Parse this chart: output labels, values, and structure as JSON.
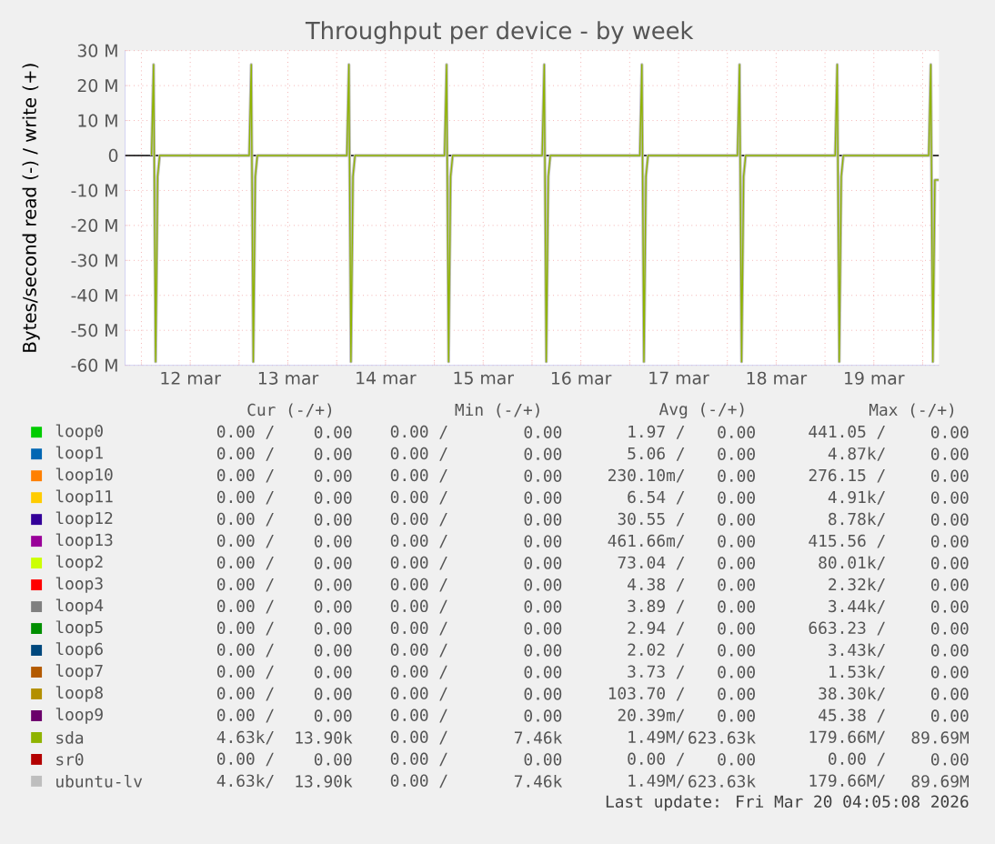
{
  "chart_data": {
    "type": "line",
    "title": "Throughput per device - by week",
    "ylabel": "Bytes/second read (-) / write (+)",
    "xlim": [
      "2026-03-11T20:00",
      "2026-03-20T04:00"
    ],
    "xticks": [
      {
        "value": "2026-03-12T00:00",
        "label": null
      },
      {
        "value": "2026-03-12T12:00",
        "label": "12 mar"
      },
      {
        "value": "2026-03-13T00:00",
        "label": null
      },
      {
        "value": "2026-03-13T12:00",
        "label": "13 mar"
      },
      {
        "value": "2026-03-14T00:00",
        "label": null
      },
      {
        "value": "2026-03-14T12:00",
        "label": "14 mar"
      },
      {
        "value": "2026-03-15T00:00",
        "label": null
      },
      {
        "value": "2026-03-15T12:00",
        "label": "15 mar"
      },
      {
        "value": "2026-03-16T00:00",
        "label": null
      },
      {
        "value": "2026-03-16T12:00",
        "label": "16 mar"
      },
      {
        "value": "2026-03-17T00:00",
        "label": null
      },
      {
        "value": "2026-03-17T12:00",
        "label": "17 mar"
      },
      {
        "value": "2026-03-18T00:00",
        "label": null
      },
      {
        "value": "2026-03-18T12:00",
        "label": "18 mar"
      },
      {
        "value": "2026-03-19T00:00",
        "label": null
      },
      {
        "value": "2026-03-19T12:00",
        "label": "19 mar"
      },
      {
        "value": "2026-03-20T00:00",
        "label": null
      }
    ],
    "ylim": [
      -60000000,
      30000000
    ],
    "yticks": [
      {
        "value": 30000000,
        "label": "30 M"
      },
      {
        "value": 20000000,
        "label": "20 M"
      },
      {
        "value": 10000000,
        "label": "10 M"
      },
      0,
      {
        "value": -10000000,
        "label": "-10 M"
      },
      {
        "value": -20000000,
        "label": "-20 M"
      },
      {
        "value": -30000000,
        "label": "-30 M"
      },
      {
        "value": -40000000,
        "label": "-40 M"
      },
      {
        "value": -50000000,
        "label": "-50 M"
      },
      {
        "value": -60000000,
        "label": "-60 M"
      }
    ],
    "grid": true,
    "legend": "bottom",
    "x": [
      "2026-03-12T02:30",
      "2026-03-12T03:00",
      "2026-03-12T03:30",
      "2026-03-12T04:00",
      "2026-03-12T04:30",
      "2026-03-13T02:30",
      "2026-03-13T03:00",
      "2026-03-13T03:30",
      "2026-03-13T04:00",
      "2026-03-13T04:30",
      "2026-03-14T02:30",
      "2026-03-14T03:00",
      "2026-03-14T03:30",
      "2026-03-14T04:00",
      "2026-03-14T04:30",
      "2026-03-15T02:30",
      "2026-03-15T03:00",
      "2026-03-15T03:30",
      "2026-03-15T04:00",
      "2026-03-15T04:30",
      "2026-03-16T02:30",
      "2026-03-16T03:00",
      "2026-03-16T03:30",
      "2026-03-16T04:00",
      "2026-03-16T04:30",
      "2026-03-17T02:30",
      "2026-03-17T03:00",
      "2026-03-17T03:30",
      "2026-03-17T04:00",
      "2026-03-17T04:30",
      "2026-03-18T02:30",
      "2026-03-18T03:00",
      "2026-03-18T03:30",
      "2026-03-18T04:00",
      "2026-03-18T04:30",
      "2026-03-19T02:30",
      "2026-03-19T03:00",
      "2026-03-19T03:30",
      "2026-03-19T04:00",
      "2026-03-19T04:30",
      "2026-03-20T01:30",
      "2026-03-20T02:00",
      "2026-03-20T02:30",
      "2026-03-20T03:00",
      "2026-03-20T04:00"
    ],
    "series": [
      {
        "name": "loop0",
        "color": "#00cc00",
        "values": [
          null,
          null,
          null,
          null,
          null,
          null,
          null,
          null,
          null,
          null,
          null,
          null,
          null,
          null,
          null,
          null,
          null,
          null,
          null,
          null,
          null,
          null,
          null,
          null,
          null,
          null,
          null,
          null,
          null,
          null,
          null,
          null,
          null,
          null,
          null,
          null,
          null,
          null,
          null,
          null,
          null,
          null,
          null,
          null,
          null
        ]
      },
      {
        "name": "loop1",
        "color": "#0066b3",
        "values": [
          null,
          null,
          null,
          null,
          null,
          null,
          null,
          null,
          null,
          null,
          null,
          null,
          null,
          null,
          null,
          null,
          null,
          null,
          null,
          null,
          null,
          null,
          null,
          null,
          null,
          null,
          null,
          null,
          null,
          null,
          null,
          null,
          null,
          null,
          null,
          null,
          null,
          null,
          null,
          null,
          null,
          null,
          null,
          null,
          null
        ]
      },
      {
        "name": "loop10",
        "color": "#ff8000",
        "values": [
          null,
          null,
          null,
          null,
          null,
          null,
          null,
          null,
          null,
          null,
          null,
          null,
          null,
          null,
          null,
          null,
          null,
          null,
          null,
          null,
          null,
          null,
          null,
          null,
          null,
          null,
          null,
          null,
          null,
          null,
          null,
          null,
          null,
          null,
          null,
          null,
          null,
          null,
          null,
          null,
          null,
          null,
          null,
          null,
          null
        ]
      },
      {
        "name": "loop11",
        "color": "#ffcc00",
        "values": [
          null,
          null,
          null,
          null,
          null,
          null,
          null,
          null,
          null,
          null,
          null,
          null,
          null,
          null,
          null,
          null,
          null,
          null,
          null,
          null,
          null,
          null,
          null,
          null,
          null,
          null,
          null,
          null,
          null,
          null,
          null,
          null,
          null,
          null,
          null,
          null,
          null,
          null,
          null,
          null,
          null,
          null,
          null,
          null,
          null
        ]
      },
      {
        "name": "loop12",
        "color": "#330099",
        "values": [
          null,
          null,
          null,
          null,
          null,
          null,
          null,
          null,
          null,
          null,
          null,
          null,
          null,
          null,
          null,
          null,
          null,
          null,
          null,
          null,
          null,
          null,
          null,
          null,
          null,
          null,
          null,
          null,
          null,
          null,
          null,
          null,
          null,
          null,
          null,
          null,
          null,
          null,
          null,
          null,
          null,
          null,
          null,
          null,
          null
        ]
      },
      {
        "name": "loop13",
        "color": "#990099",
        "values": [
          null,
          null,
          null,
          null,
          null,
          null,
          null,
          null,
          null,
          null,
          null,
          null,
          null,
          null,
          null,
          null,
          null,
          null,
          null,
          null,
          null,
          null,
          null,
          null,
          null,
          null,
          null,
          null,
          null,
          null,
          null,
          null,
          null,
          null,
          null,
          null,
          null,
          null,
          null,
          null,
          null,
          null,
          null,
          null,
          null
        ]
      },
      {
        "name": "loop2",
        "color": "#ccff00",
        "values": [
          null,
          null,
          null,
          null,
          null,
          null,
          null,
          null,
          null,
          null,
          null,
          null,
          null,
          null,
          null,
          null,
          null,
          null,
          null,
          null,
          null,
          null,
          null,
          null,
          null,
          null,
          null,
          null,
          null,
          null,
          null,
          null,
          null,
          null,
          null,
          null,
          null,
          null,
          null,
          null,
          null,
          null,
          null,
          null,
          null
        ]
      },
      {
        "name": "loop3",
        "color": "#ff0000",
        "values": [
          null,
          null,
          null,
          null,
          null,
          null,
          null,
          null,
          null,
          null,
          null,
          null,
          null,
          null,
          null,
          null,
          null,
          null,
          null,
          null,
          null,
          null,
          null,
          null,
          null,
          null,
          null,
          null,
          null,
          null,
          null,
          null,
          null,
          null,
          null,
          null,
          null,
          null,
          null,
          null,
          null,
          null,
          null,
          null,
          null
        ]
      },
      {
        "name": "loop4",
        "color": "#808080",
        "values": [
          null,
          null,
          null,
          null,
          null,
          null,
          null,
          null,
          null,
          null,
          null,
          null,
          null,
          null,
          null,
          null,
          null,
          null,
          null,
          null,
          null,
          null,
          null,
          null,
          null,
          null,
          null,
          null,
          null,
          null,
          null,
          null,
          null,
          null,
          null,
          null,
          null,
          null,
          null,
          null,
          null,
          null,
          null,
          null,
          null
        ]
      },
      {
        "name": "loop5",
        "color": "#008f00",
        "values": [
          null,
          null,
          null,
          null,
          null,
          null,
          null,
          null,
          null,
          null,
          null,
          null,
          null,
          null,
          null,
          null,
          null,
          null,
          null,
          null,
          null,
          null,
          null,
          null,
          null,
          null,
          null,
          null,
          null,
          null,
          null,
          null,
          null,
          null,
          null,
          null,
          null,
          null,
          null,
          null,
          null,
          null,
          null,
          null,
          null
        ]
      },
      {
        "name": "loop6",
        "color": "#00487d",
        "values": [
          null,
          null,
          null,
          null,
          null,
          null,
          null,
          null,
          null,
          null,
          null,
          null,
          null,
          null,
          null,
          null,
          null,
          null,
          null,
          null,
          null,
          null,
          null,
          null,
          null,
          null,
          null,
          null,
          null,
          null,
          null,
          null,
          null,
          null,
          null,
          null,
          null,
          null,
          null,
          null,
          null,
          null,
          null,
          null,
          null
        ]
      },
      {
        "name": "loop7",
        "color": "#b35a00",
        "values": [
          null,
          null,
          null,
          null,
          null,
          null,
          null,
          null,
          null,
          null,
          null,
          null,
          null,
          null,
          null,
          null,
          null,
          null,
          null,
          null,
          null,
          null,
          null,
          null,
          null,
          null,
          null,
          null,
          null,
          null,
          null,
          null,
          null,
          null,
          null,
          null,
          null,
          null,
          null,
          null,
          null,
          null,
          null,
          null,
          null
        ]
      },
      {
        "name": "loop8",
        "color": "#b38f00",
        "values": [
          null,
          null,
          null,
          null,
          null,
          null,
          null,
          null,
          null,
          null,
          null,
          null,
          null,
          null,
          null,
          null,
          null,
          null,
          null,
          null,
          null,
          null,
          null,
          null,
          null,
          null,
          null,
          null,
          null,
          null,
          null,
          null,
          null,
          null,
          null,
          null,
          null,
          null,
          null,
          null,
          null,
          null,
          null,
          null,
          null
        ]
      },
      {
        "name": "loop9",
        "color": "#6b006b",
        "values": [
          null,
          null,
          null,
          null,
          null,
          null,
          null,
          null,
          null,
          null,
          null,
          null,
          null,
          null,
          null,
          null,
          null,
          null,
          null,
          null,
          null,
          null,
          null,
          null,
          null,
          null,
          null,
          null,
          null,
          null,
          null,
          null,
          null,
          null,
          null,
          null,
          null,
          null,
          null,
          null,
          null,
          null,
          null,
          null,
          null
        ]
      },
      {
        "name": "sda",
        "color": "#8fb300",
        "values": [
          0,
          26000000,
          -59000000,
          -6000000,
          0,
          0,
          26000000,
          -59000000,
          -6000000,
          0,
          0,
          26000000,
          -59000000,
          -6000000,
          0,
          0,
          26000000,
          -59000000,
          -6000000,
          0,
          0,
          26000000,
          -59000000,
          -6000000,
          0,
          0,
          26000000,
          -59000000,
          -6000000,
          0,
          0,
          26000000,
          -59000000,
          -6000000,
          0,
          0,
          26000000,
          -59000000,
          -6000000,
          0,
          0,
          26000000,
          -59000000,
          -7000000,
          -7000000
        ]
      },
      {
        "name": "sr0",
        "color": "#b30000",
        "values": [
          null,
          null,
          null,
          null,
          null,
          null,
          null,
          null,
          null,
          null,
          null,
          null,
          null,
          null,
          null,
          null,
          null,
          null,
          null,
          null,
          null,
          null,
          null,
          null,
          null,
          null,
          null,
          null,
          null,
          null,
          null,
          null,
          null,
          null,
          null,
          null,
          null,
          null,
          null,
          null,
          null,
          null,
          null,
          null,
          null
        ]
      },
      {
        "name": "ubuntu-lv",
        "color": "#bebebe",
        "values": [
          0,
          26000000,
          -59000000,
          -6000000,
          0,
          0,
          26000000,
          -59000000,
          -6000000,
          0,
          0,
          26000000,
          -59000000,
          -6000000,
          0,
          0,
          26000000,
          -59000000,
          -6000000,
          0,
          0,
          26000000,
          -59000000,
          -6000000,
          0,
          0,
          26000000,
          -59000000,
          -6000000,
          0,
          0,
          26000000,
          -59000000,
          -6000000,
          0,
          0,
          26000000,
          -59000000,
          -6000000,
          0,
          0,
          26000000,
          -59000000,
          -7000000,
          -7000000
        ]
      }
    ],
    "annotations": [
      "Cur (-/+)",
      "Min (-/+)",
      "Avg (-/+)",
      "Max (-/+)",
      "0.00 /",
      "0.00",
      "0.00 /",
      "0.00",
      "1.97 /",
      "0.00",
      "441.05 /",
      "0.00",
      "0.00 /",
      "0.00",
      "0.00 /",
      "0.00",
      "5.06 /",
      "0.00",
      "4.87k/",
      "0.00",
      "0.00 /",
      "0.00",
      "0.00 /",
      "0.00",
      "230.10m/",
      "0.00",
      "276.15 /",
      "0.00",
      "0.00 /",
      "0.00",
      "0.00 /",
      "0.00",
      "6.54 /",
      "0.00",
      "4.91k/",
      "0.00",
      "0.00 /",
      "0.00",
      "0.00 /",
      "0.00",
      "30.55 /",
      "0.00",
      "8.78k/",
      "0.00",
      "0.00 /",
      "0.00",
      "0.00 /",
      "0.00",
      "461.66m/",
      "0.00",
      "415.56 /",
      "0.00",
      "0.00 /",
      "0.00",
      "0.00 /",
      "0.00",
      "73.04 /",
      "0.00",
      "80.01k/",
      "0.00",
      "0.00 /",
      "0.00",
      "0.00 /",
      "0.00",
      "4.38 /",
      "0.00",
      "2.32k/",
      "0.00",
      "0.00 /",
      "0.00",
      "0.00 /",
      "0.00",
      "3.89 /",
      "0.00",
      "3.44k/",
      "0.00",
      "0.00 /",
      "0.00",
      "0.00 /",
      "0.00",
      "2.94 /",
      "0.00",
      "663.23 /",
      "0.00",
      "0.00 /",
      "0.00",
      "0.00 /",
      "0.00",
      "2.02 /",
      "0.00",
      "3.43k/",
      "0.00",
      "0.00 /",
      "0.00",
      "0.00 /",
      "0.00",
      "3.73 /",
      "0.00",
      "1.53k/",
      "0.00",
      "0.00 /",
      "0.00",
      "0.00 /",
      "0.00",
      "103.70 /",
      "0.00",
      "38.30k/",
      "0.00",
      "0.00 /",
      "0.00",
      "0.00 /",
      "0.00",
      "20.39m/",
      "0.00",
      "45.38 /",
      "0.00",
      "4.63k/",
      "13.90k",
      "0.00 /",
      "7.46k",
      "1.49M/",
      "623.63k",
      "179.66M/",
      "89.69M",
      "0.00 /",
      "0.00",
      "0.00 /",
      "0.00",
      "0.00 /",
      "0.00",
      "0.00 /",
      "0.00",
      "4.63k/",
      "13.90k",
      "0.00 /",
      "7.46k",
      "1.49M/",
      "623.63k",
      "179.66M/",
      "89.69M",
      "Last update: Fri Mar 20 04:05:08 2026"
    ]
  }
}
